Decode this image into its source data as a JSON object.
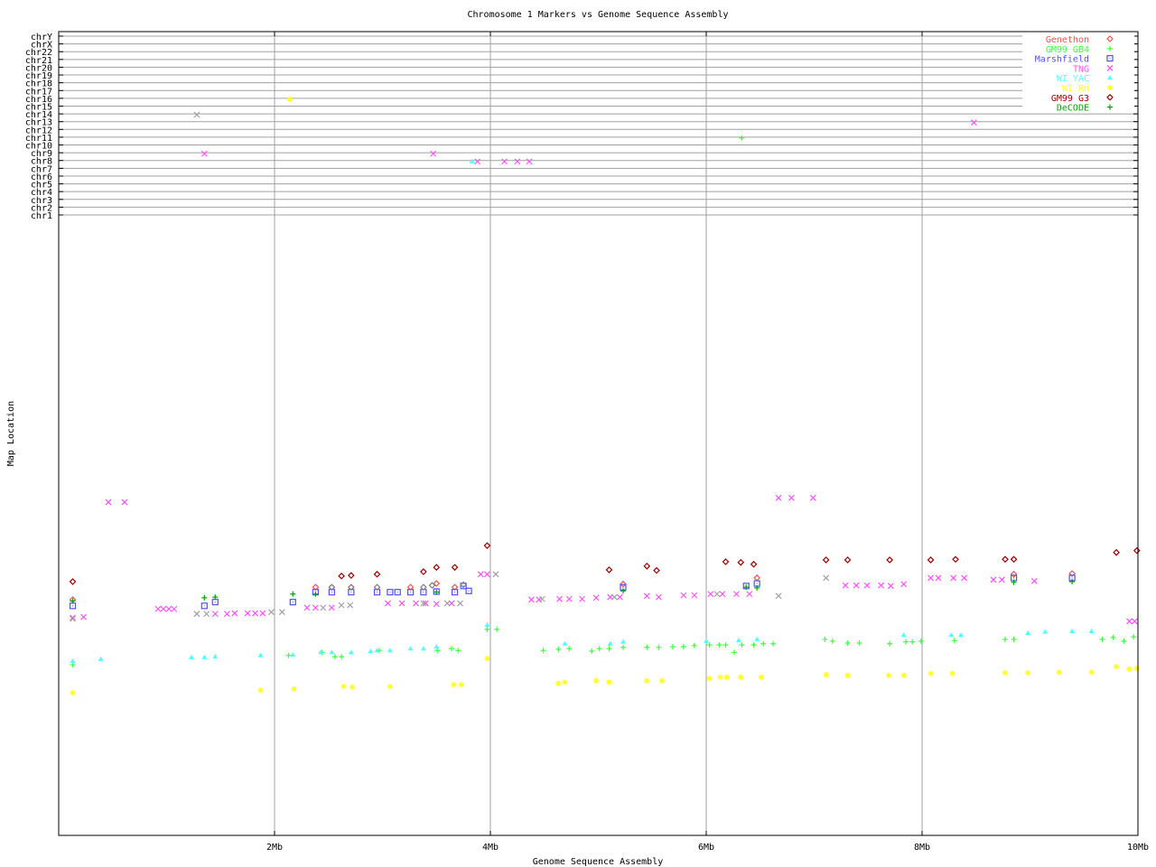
{
  "chart_data": {
    "type": "scatter",
    "title": "Chromosome 1 Markers vs Genome Sequence Assembly",
    "xlabel": "Genome Sequence Assembly",
    "ylabel": "Map Location",
    "xlim": [
      0,
      10
    ],
    "x_unit": "Mb",
    "x_ticks": [
      "2Mb",
      "4Mb",
      "6Mb",
      "8Mb",
      "10Mb"
    ],
    "x_tick_values": [
      2,
      4,
      6,
      8,
      10
    ],
    "chromosome_ticks": [
      "chrY",
      "chrX",
      "chr22",
      "chr21",
      "chr20",
      "chr19",
      "chr18",
      "chr17",
      "chr16",
      "chr15",
      "chr14",
      "chr13",
      "chr12",
      "chr11",
      "chr10",
      "chr9",
      "chr8",
      "chr7",
      "chr6",
      "chr5",
      "chr4",
      "chr3",
      "chr2",
      "chr1"
    ],
    "chr1_map_location_range": [
      0,
      100
    ],
    "grid": true,
    "legend_position": "top-right",
    "series": [
      {
        "name": "Genethon",
        "color": "#ff5050",
        "marker": "diamond",
        "points": [
          [
            0.13,
            38.0
          ],
          [
            2.38,
            40.0
          ],
          [
            2.53,
            40.0
          ],
          [
            2.71,
            40.0
          ],
          [
            3.26,
            40.0
          ],
          [
            3.5,
            40.6
          ],
          [
            3.67,
            40.0
          ],
          [
            5.23,
            40.5
          ],
          [
            6.47,
            41.5
          ],
          [
            8.85,
            42.1
          ],
          [
            9.39,
            42.2
          ]
        ],
        "off_chromosome": []
      },
      {
        "name": "GM99 GB4",
        "color": "#40ff40",
        "marker": "plus",
        "points": [
          [
            0.13,
            27.5
          ],
          [
            2.13,
            29.0
          ],
          [
            2.44,
            29.5
          ],
          [
            2.56,
            28.8
          ],
          [
            2.62,
            28.8
          ],
          [
            2.97,
            29.8
          ],
          [
            3.51,
            29.8
          ],
          [
            3.64,
            30.1
          ],
          [
            3.7,
            29.8
          ],
          [
            3.97,
            33.2
          ],
          [
            4.06,
            33.2
          ],
          [
            4.49,
            29.8
          ],
          [
            4.63,
            30.0
          ],
          [
            4.73,
            30.1
          ],
          [
            4.94,
            29.7
          ],
          [
            5.01,
            30.1
          ],
          [
            5.1,
            30.1
          ],
          [
            5.23,
            30.3
          ],
          [
            5.45,
            30.3
          ],
          [
            5.56,
            30.3
          ],
          [
            5.69,
            30.4
          ],
          [
            5.79,
            30.4
          ],
          [
            5.89,
            30.6
          ],
          [
            6.03,
            30.7
          ],
          [
            6.12,
            30.7
          ],
          [
            6.18,
            30.7
          ],
          [
            6.26,
            29.5
          ],
          [
            6.33,
            30.7
          ],
          [
            6.44,
            30.7
          ],
          [
            6.53,
            30.9
          ],
          [
            6.62,
            30.9
          ],
          [
            7.1,
            31.6
          ],
          [
            7.17,
            31.3
          ],
          [
            7.31,
            31.0
          ],
          [
            7.42,
            31.0
          ],
          [
            7.7,
            30.9
          ],
          [
            7.85,
            31.2
          ],
          [
            7.91,
            31.2
          ],
          [
            7.99,
            31.3
          ],
          [
            8.3,
            31.4
          ],
          [
            8.77,
            31.6
          ],
          [
            8.85,
            31.6
          ],
          [
            9.67,
            31.6
          ],
          [
            9.77,
            31.9
          ],
          [
            9.87,
            31.3
          ],
          [
            9.96,
            32.0
          ]
        ],
        "off_chromosome": [
          [
            6.33,
            "chr11"
          ]
        ]
      },
      {
        "name": "Marshfield",
        "color": "#5050ff",
        "marker": "square",
        "points": [
          [
            0.13,
            37.0
          ],
          [
            1.35,
            37.0
          ],
          [
            1.45,
            37.6
          ],
          [
            2.17,
            37.6
          ],
          [
            2.38,
            39.2
          ],
          [
            2.53,
            39.2
          ],
          [
            2.71,
            39.2
          ],
          [
            2.95,
            39.2
          ],
          [
            3.07,
            39.2
          ],
          [
            3.14,
            39.2
          ],
          [
            3.26,
            39.2
          ],
          [
            3.38,
            39.2
          ],
          [
            3.5,
            39.3
          ],
          [
            3.67,
            39.2
          ],
          [
            3.75,
            40.2
          ],
          [
            3.8,
            39.4
          ],
          [
            5.23,
            40.0
          ],
          [
            6.37,
            40.2
          ],
          [
            6.47,
            40.6
          ],
          [
            8.85,
            41.5
          ],
          [
            9.39,
            41.5
          ]
        ],
        "off_chromosome": []
      },
      {
        "name": "TNG",
        "color": "#ff50ff",
        "marker": "x",
        "points": [
          [
            0.13,
            35.1
          ],
          [
            0.23,
            35.2
          ],
          [
            0.46,
            53.7
          ],
          [
            0.61,
            53.7
          ],
          [
            0.92,
            36.5
          ],
          [
            0.97,
            36.5
          ],
          [
            1.02,
            36.5
          ],
          [
            1.07,
            36.5
          ],
          [
            1.28,
            35.7
          ],
          [
            1.45,
            35.7
          ],
          [
            1.56,
            35.7
          ],
          [
            1.63,
            35.8
          ],
          [
            1.75,
            35.8
          ],
          [
            1.82,
            35.8
          ],
          [
            1.89,
            35.8
          ],
          [
            2.3,
            36.7
          ],
          [
            2.38,
            36.7
          ],
          [
            2.53,
            36.7
          ],
          [
            3.05,
            37.4
          ],
          [
            3.18,
            37.4
          ],
          [
            3.31,
            37.4
          ],
          [
            3.4,
            37.4
          ],
          [
            3.5,
            37.3
          ],
          [
            3.64,
            37.4
          ],
          [
            3.91,
            42.1
          ],
          [
            3.97,
            42.1
          ],
          [
            4.38,
            38.0
          ],
          [
            4.45,
            38.0
          ],
          [
            4.64,
            38.1
          ],
          [
            4.73,
            38.1
          ],
          [
            4.85,
            38.1
          ],
          [
            4.98,
            38.3
          ],
          [
            5.11,
            38.4
          ],
          [
            5.2,
            38.4
          ],
          [
            5.45,
            38.6
          ],
          [
            5.56,
            38.4
          ],
          [
            5.79,
            38.7
          ],
          [
            5.89,
            38.7
          ],
          [
            6.04,
            38.9
          ],
          [
            6.15,
            38.9
          ],
          [
            6.28,
            38.9
          ],
          [
            6.4,
            38.9
          ],
          [
            6.67,
            54.4
          ],
          [
            6.79,
            54.4
          ],
          [
            6.99,
            54.4
          ],
          [
            7.29,
            40.3
          ],
          [
            7.39,
            40.3
          ],
          [
            7.49,
            40.3
          ],
          [
            7.62,
            40.3
          ],
          [
            7.71,
            40.2
          ],
          [
            7.83,
            40.5
          ],
          [
            8.08,
            41.5
          ],
          [
            8.15,
            41.5
          ],
          [
            8.29,
            41.5
          ],
          [
            8.39,
            41.5
          ],
          [
            8.66,
            41.2
          ],
          [
            8.74,
            41.2
          ],
          [
            9.04,
            41.0
          ],
          [
            9.92,
            34.5
          ],
          [
            9.97,
            34.5
          ]
        ],
        "off_chromosome": [
          [
            1.35,
            "chr9"
          ],
          [
            3.47,
            "chr9"
          ],
          [
            3.88,
            "chr8"
          ],
          [
            4.13,
            "chr8"
          ],
          [
            4.25,
            "chr8"
          ],
          [
            4.36,
            "chr8"
          ],
          [
            8.48,
            "chr13"
          ]
        ]
      },
      {
        "name": "WI YAC",
        "color": "#50ffff",
        "marker": "triangle",
        "points": [
          [
            0.13,
            28.1
          ],
          [
            0.39,
            28.4
          ],
          [
            1.23,
            28.7
          ],
          [
            1.35,
            28.7
          ],
          [
            1.45,
            28.8
          ],
          [
            1.87,
            29.0
          ],
          [
            2.17,
            29.1
          ],
          [
            2.43,
            29.5
          ],
          [
            2.53,
            29.5
          ],
          [
            2.71,
            29.5
          ],
          [
            2.89,
            29.7
          ],
          [
            2.95,
            29.8
          ],
          [
            3.07,
            29.8
          ],
          [
            3.26,
            30.1
          ],
          [
            3.38,
            30.1
          ],
          [
            3.5,
            30.4
          ],
          [
            3.97,
            33.9
          ],
          [
            4.69,
            30.9
          ],
          [
            5.11,
            30.9
          ],
          [
            5.23,
            31.2
          ],
          [
            6.0,
            31.3
          ],
          [
            6.3,
            31.4
          ],
          [
            6.47,
            31.6
          ],
          [
            7.83,
            32.3
          ],
          [
            8.27,
            32.3
          ],
          [
            8.36,
            32.3
          ],
          [
            8.98,
            32.6
          ],
          [
            9.14,
            32.8
          ],
          [
            9.39,
            32.9
          ],
          [
            9.57,
            32.9
          ]
        ],
        "off_chromosome": [
          [
            3.83,
            "chr8"
          ]
        ]
      },
      {
        "name": "WI RH",
        "color": "#ffff30",
        "marker": "star",
        "points": [
          [
            0.13,
            23.0
          ],
          [
            1.87,
            23.4
          ],
          [
            2.18,
            23.6
          ],
          [
            2.64,
            24.0
          ],
          [
            2.72,
            23.9
          ],
          [
            3.07,
            24.0
          ],
          [
            3.66,
            24.3
          ],
          [
            3.73,
            24.3
          ],
          [
            3.97,
            28.5
          ],
          [
            4.63,
            24.5
          ],
          [
            4.69,
            24.7
          ],
          [
            4.98,
            24.9
          ],
          [
            5.1,
            24.7
          ],
          [
            5.45,
            24.9
          ],
          [
            5.59,
            24.9
          ],
          [
            6.03,
            25.3
          ],
          [
            6.13,
            25.5
          ],
          [
            6.19,
            25.5
          ],
          [
            6.32,
            25.5
          ],
          [
            6.51,
            25.5
          ],
          [
            7.11,
            25.9
          ],
          [
            7.31,
            25.8
          ],
          [
            7.69,
            25.8
          ],
          [
            7.83,
            25.8
          ],
          [
            8.08,
            26.1
          ],
          [
            8.28,
            26.1
          ],
          [
            8.77,
            26.2
          ],
          [
            8.98,
            26.2
          ],
          [
            9.27,
            26.3
          ],
          [
            9.57,
            26.3
          ],
          [
            9.8,
            27.2
          ],
          [
            9.92,
            26.8
          ],
          [
            9.99,
            26.9
          ]
        ],
        "off_chromosome": [
          [
            2.14,
            "chr16"
          ]
        ]
      },
      {
        "name": "GM99 G3",
        "color": "#a00000",
        "marker": "diamond",
        "points": [
          [
            0.13,
            40.9
          ],
          [
            2.62,
            41.8
          ],
          [
            2.71,
            41.9
          ],
          [
            2.95,
            42.1
          ],
          [
            3.38,
            42.5
          ],
          [
            3.5,
            43.2
          ],
          [
            3.67,
            43.2
          ],
          [
            3.97,
            46.7
          ],
          [
            5.1,
            42.8
          ],
          [
            5.45,
            43.4
          ],
          [
            5.54,
            42.7
          ],
          [
            6.18,
            44.1
          ],
          [
            6.32,
            44.0
          ],
          [
            6.44,
            43.7
          ],
          [
            7.11,
            44.4
          ],
          [
            7.31,
            44.4
          ],
          [
            7.7,
            44.4
          ],
          [
            8.08,
            44.4
          ],
          [
            8.31,
            44.5
          ],
          [
            8.77,
            44.5
          ],
          [
            8.85,
            44.5
          ],
          [
            9.8,
            45.6
          ],
          [
            9.99,
            45.9
          ]
        ],
        "off_chromosome": []
      },
      {
        "name": "DeCODE",
        "color": "#00a000",
        "marker": "plus",
        "points": [
          [
            0.13,
            37.8
          ],
          [
            1.35,
            38.3
          ],
          [
            1.45,
            38.4
          ],
          [
            2.17,
            38.9
          ],
          [
            2.38,
            38.9
          ],
          [
            3.5,
            39.2
          ],
          [
            5.23,
            39.4
          ],
          [
            6.37,
            40.0
          ],
          [
            6.47,
            39.9
          ],
          [
            8.85,
            40.8
          ],
          [
            9.39,
            40.9
          ]
        ],
        "off_chromosome": []
      },
      {
        "color": "#a0a0a0",
        "marker": "x",
        "points": [
          [
            0.13,
            34.9
          ],
          [
            1.28,
            35.7
          ],
          [
            1.37,
            35.7
          ],
          [
            1.97,
            36.0
          ],
          [
            2.07,
            36.0
          ],
          [
            2.45,
            36.7
          ],
          [
            2.62,
            37.1
          ],
          [
            2.7,
            37.1
          ],
          [
            3.38,
            37.4
          ],
          [
            3.6,
            37.4
          ],
          [
            3.72,
            37.4
          ],
          [
            4.05,
            42.1
          ],
          [
            4.48,
            38.1
          ],
          [
            5.15,
            38.4
          ],
          [
            6.1,
            38.9
          ],
          [
            6.67,
            38.6
          ],
          [
            7.11,
            41.5
          ]
        ],
        "off_chromosome": [
          [
            1.28,
            "chr14"
          ]
        ]
      },
      {
        "color": "#808080",
        "marker": "diamond",
        "points": [
          [
            2.53,
            40.0
          ],
          [
            2.71,
            40.0
          ],
          [
            2.95,
            40.0
          ],
          [
            3.38,
            40.0
          ],
          [
            3.46,
            40.3
          ],
          [
            3.75,
            40.4
          ]
        ],
        "off_chromosome": []
      }
    ]
  }
}
